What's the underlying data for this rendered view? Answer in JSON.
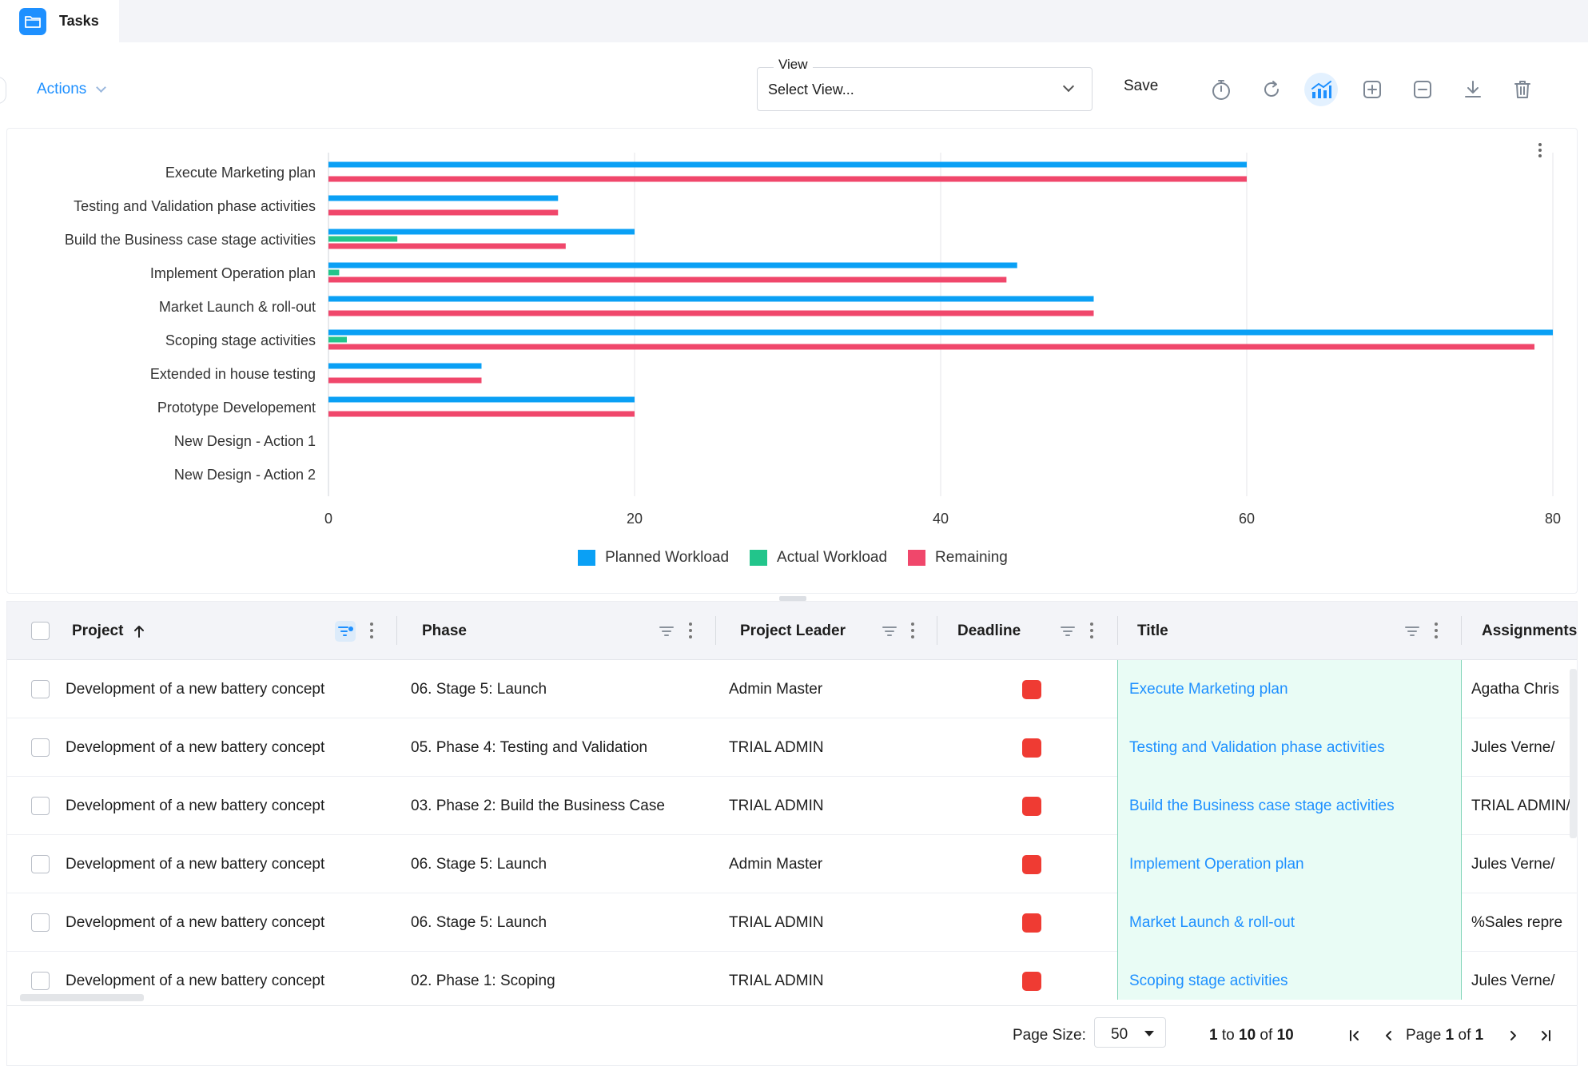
{
  "tab": {
    "label": "Tasks",
    "icon": "folder-icon"
  },
  "toolbar": {
    "actions_label": "Actions",
    "view_label": "View",
    "view_value": "Select View...",
    "save_label": "Save",
    "icons": [
      "stopwatch-icon",
      "refresh-icon",
      "chart-icon",
      "add-square-icon",
      "minus-square-icon",
      "download-icon",
      "trash-icon"
    ]
  },
  "chart_data": {
    "type": "bar",
    "orientation": "horizontal",
    "categories": [
      "Execute Marketing plan",
      "Testing and Validation phase activities",
      "Build the Business case stage activities",
      "Implement Operation plan",
      "Market Launch & roll-out",
      "Scoping stage activities",
      "Extended in house testing",
      "Prototype Developement",
      "New Design - Action 1",
      "New Design - Action 2"
    ],
    "series": [
      {
        "name": "Planned Workload",
        "color": "#0aa0f5",
        "values": [
          60,
          15,
          20,
          45,
          50,
          80,
          10,
          20,
          0,
          0
        ]
      },
      {
        "name": "Actual Workload",
        "color": "#22c58b",
        "values": [
          0,
          0,
          4.5,
          0.7,
          0,
          1.2,
          0,
          0,
          0,
          0
        ]
      },
      {
        "name": "Remaining",
        "color": "#f0476b",
        "values": [
          60,
          15,
          15.5,
          44.3,
          50,
          78.8,
          10,
          20,
          0,
          0
        ]
      }
    ],
    "xlim": [
      0,
      80
    ],
    "xticks": [
      "0",
      "20",
      "40",
      "60",
      "80"
    ],
    "grid": true,
    "legend_position": "bottom-center"
  },
  "grid": {
    "columns": {
      "project": "Project",
      "phase": "Phase",
      "leader": "Project Leader",
      "deadline": "Deadline",
      "title": "Title",
      "assignments": "Assignments"
    },
    "rows": [
      {
        "project": "Development of a new battery concept",
        "phase": "06. Stage 5: Launch",
        "leader": "Admin Master",
        "deadline_status": "#ef3b33",
        "title": "Execute Marketing plan",
        "assignments": "Agatha Chris"
      },
      {
        "project": "Development of a new battery concept",
        "phase": "05. Phase 4: Testing and Validation",
        "leader": "TRIAL ADMIN",
        "deadline_status": "#ef3b33",
        "title": "Testing and Validation phase activities",
        "assignments": "Jules Verne/"
      },
      {
        "project": "Development of a new battery concept",
        "phase": "03. Phase 2: Build the Business Case",
        "leader": "TRIAL ADMIN",
        "deadline_status": "#ef3b33",
        "title": "Build the Business case stage activities",
        "assignments": "TRIAL ADMIN/"
      },
      {
        "project": "Development of a new battery concept",
        "phase": "06. Stage 5: Launch",
        "leader": "Admin Master",
        "deadline_status": "#ef3b33",
        "title": "Implement Operation plan",
        "assignments": "Jules Verne/"
      },
      {
        "project": "Development of a new battery concept",
        "phase": "06. Stage 5: Launch",
        "leader": "TRIAL ADMIN",
        "deadline_status": "#ef3b33",
        "title": "Market Launch & roll-out",
        "assignments": "%Sales repre"
      },
      {
        "project": "Development of a new battery concept",
        "phase": "02. Phase 1: Scoping",
        "leader": "TRIAL ADMIN",
        "deadline_status": "#ef3b33",
        "title": "Scoping stage activities",
        "assignments": "Jules Verne/"
      }
    ]
  },
  "footer": {
    "page_size_label": "Page Size:",
    "page_size_value": "50",
    "range_from": "1",
    "range_to": "10",
    "range_total": "10",
    "to_word": "to",
    "of_word": "of",
    "page_word": "Page",
    "page_current": "1",
    "page_total": "1"
  }
}
